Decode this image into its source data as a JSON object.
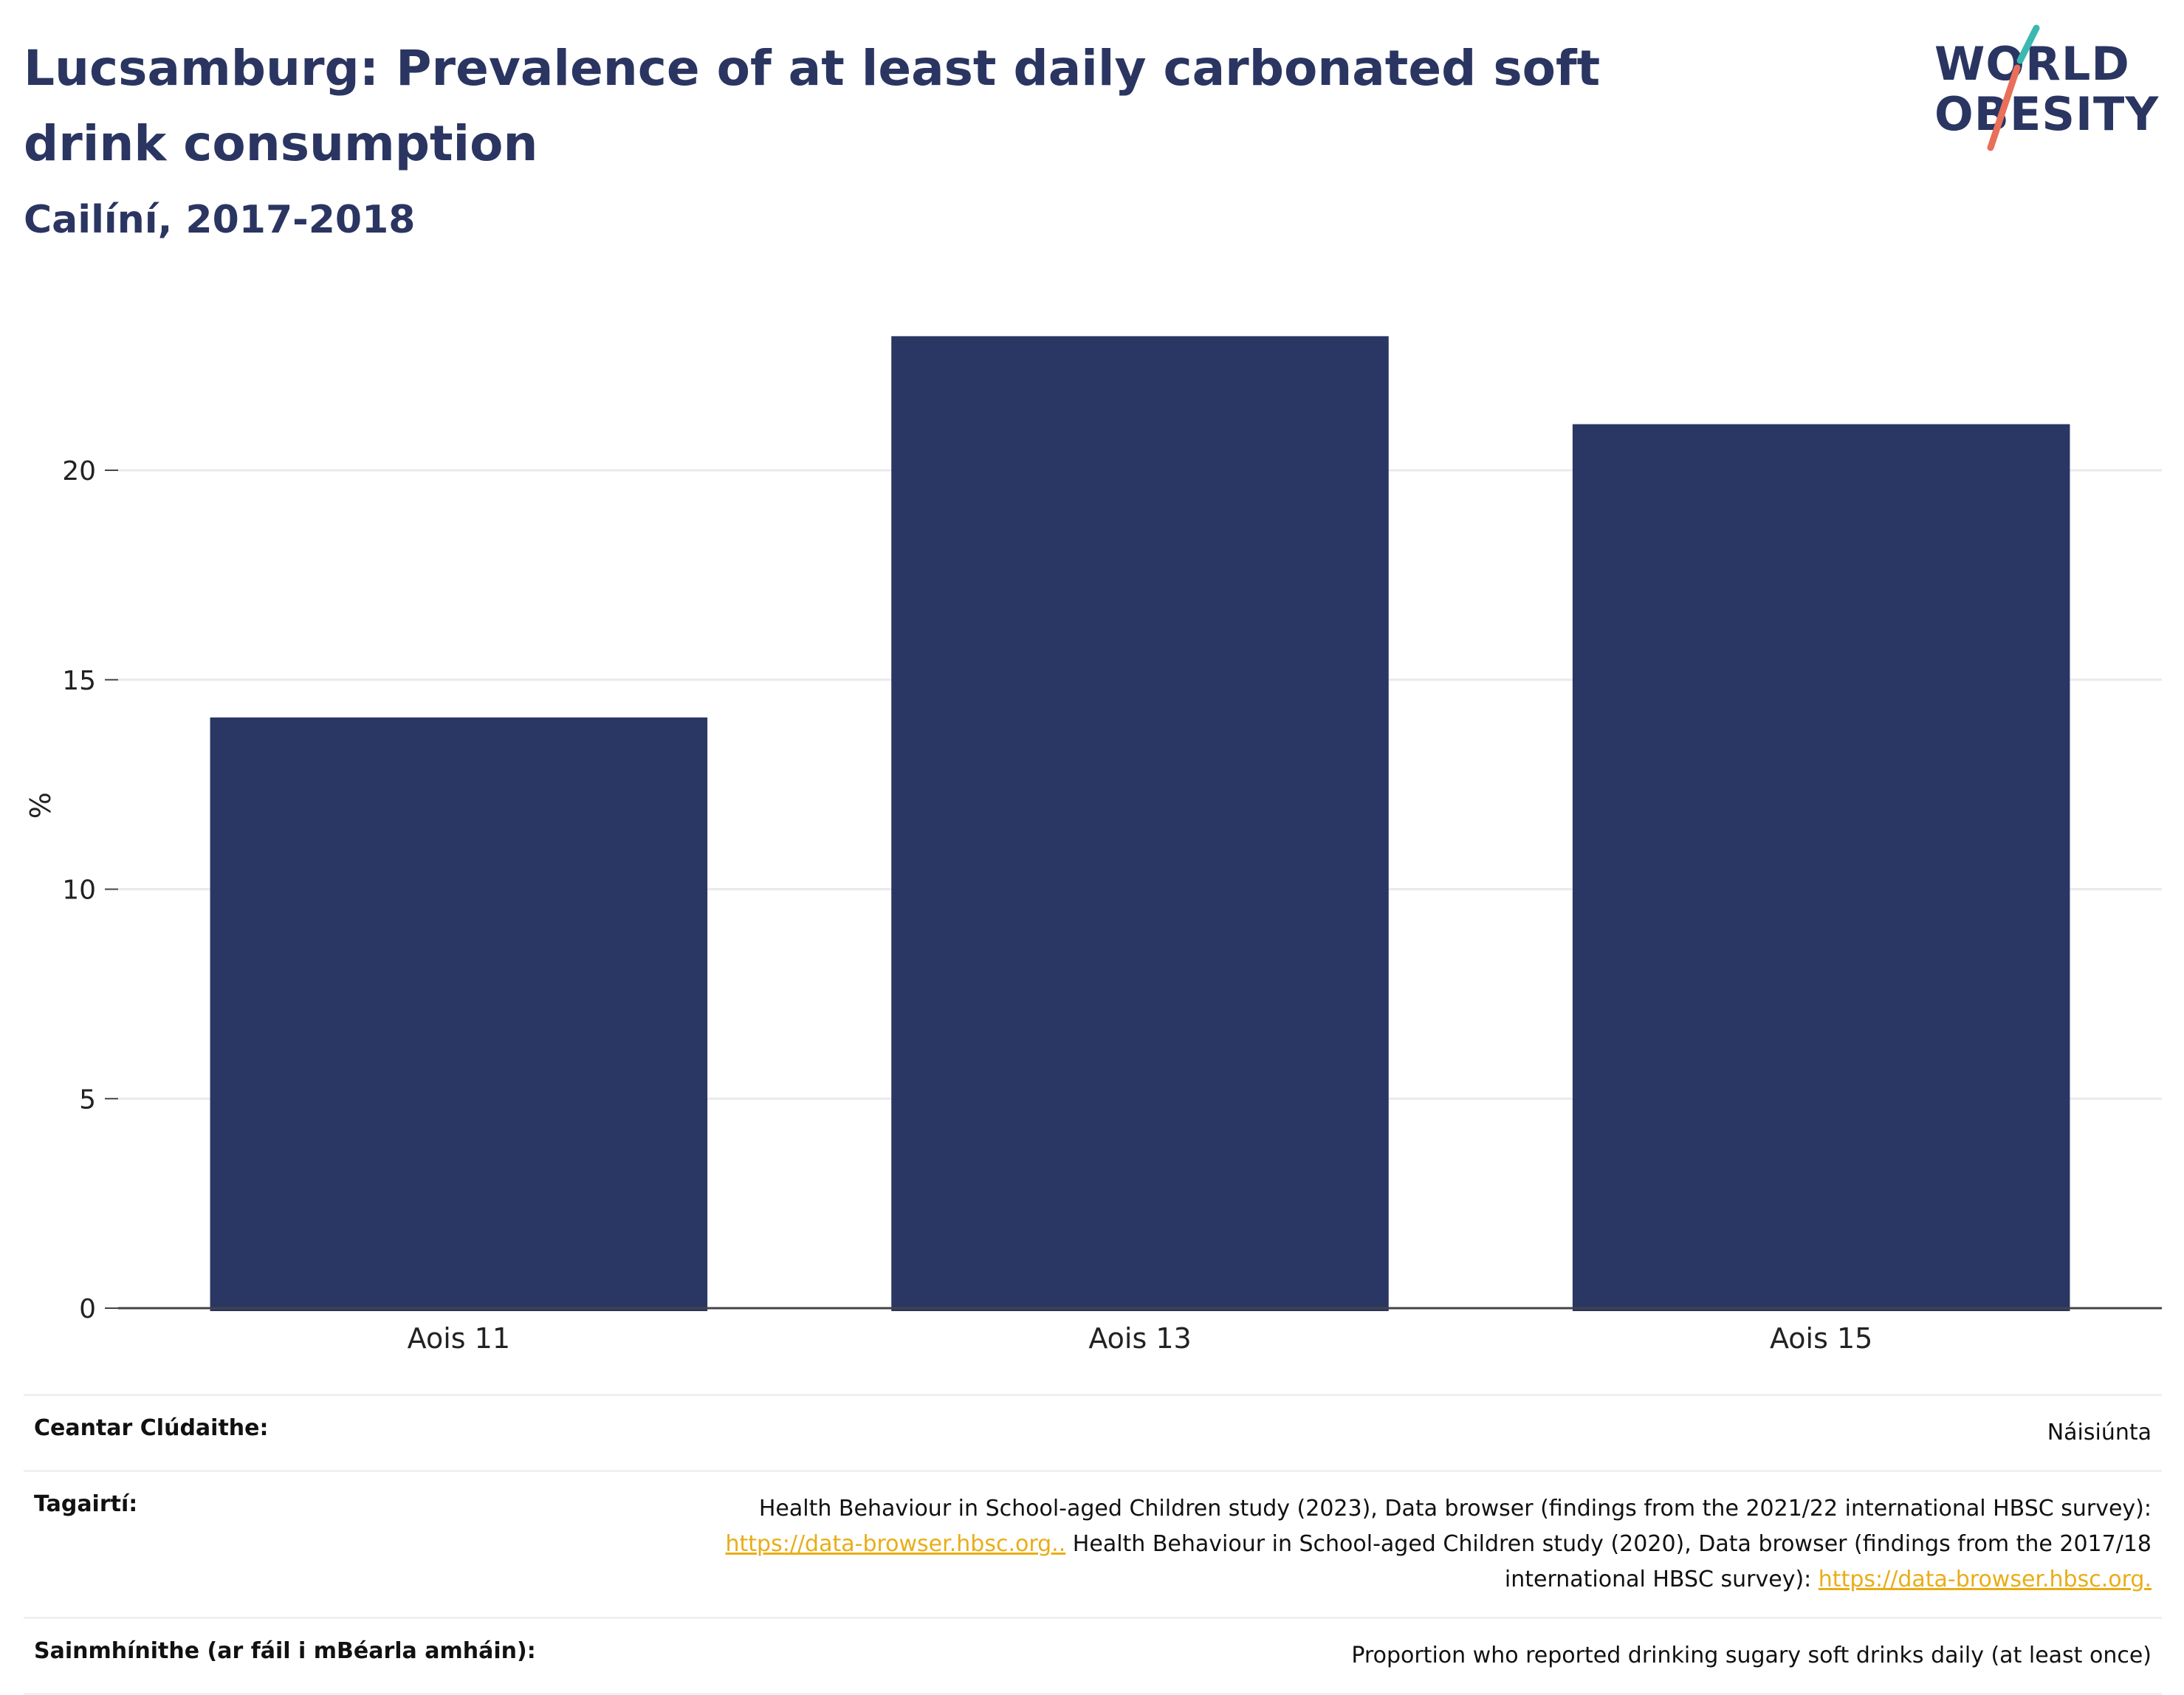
{
  "header": {
    "title": "Lucsamburg: Prevalence of at least daily carbonated soft drink consumption",
    "subtitle": "Cailíní, 2017-2018"
  },
  "logo": {
    "line1": "WORLD",
    "line2": "OBESITY",
    "accent_teal": "#3bb8b0",
    "accent_coral": "#e8705a"
  },
  "chart_data": {
    "type": "bar",
    "categories": [
      "Aois 11",
      "Aois 13",
      "Aois 15"
    ],
    "values": [
      14.1,
      23.2,
      21.1
    ],
    "title": "Lucsamburg: Prevalence of at least daily carbonated soft drink consumption",
    "subtitle": "Cailíní, 2017-2018",
    "xlabel": "",
    "ylabel": "%",
    "ylim": [
      0,
      24
    ],
    "yticks": [
      0,
      5,
      10,
      15,
      20
    ],
    "grid": true,
    "bar_color": "#2a3663"
  },
  "meta": {
    "coverage": {
      "label": "Ceantar Clúdaithe:",
      "value": "Náisiúnta"
    },
    "references": {
      "label": "Tagairtí:",
      "text1": "Health Behaviour in School-aged Children study (2023), Data browser (findings from the 2021/22 international HBSC survey):",
      "link1": "https://data-browser.hbsc.org..",
      "text2": " Health Behaviour in School-aged Children study (2020), Data browser (findings from the 2017/18 international HBSC survey): ",
      "link2": "https://data-browser.hbsc.org."
    },
    "definitions": {
      "label": "Sainmhínithe (ar fáil i mBéarla amháin):",
      "value": "Proportion who reported drinking sugary soft drinks daily (at least once)"
    }
  }
}
